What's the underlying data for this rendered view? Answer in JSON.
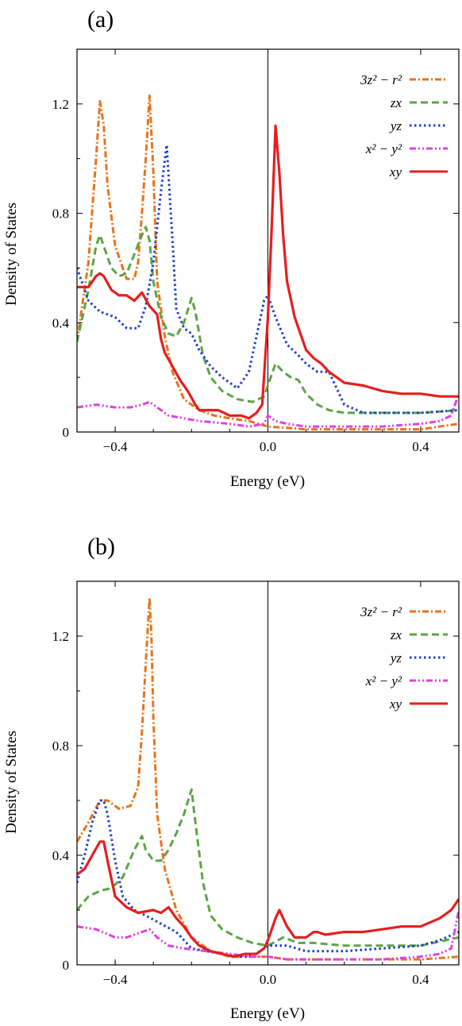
{
  "chart_data": [
    {
      "type": "line",
      "panel_label": "(a)",
      "xlabel": "Energy (eV)",
      "ylabel": "Density of States",
      "xlim": [
        -0.5,
        0.5
      ],
      "ylim": [
        0,
        1.4
      ],
      "xticks": [
        -0.4,
        0.0,
        0.4
      ],
      "xtick_labels": [
        "−0.4",
        "0.0",
        "0.4"
      ],
      "yticks": [
        0,
        0.4,
        0.8,
        1.2
      ],
      "ytick_labels": [
        "0",
        "0.4",
        "0.8",
        "1.2"
      ],
      "vline_x": 0.0,
      "legend_position": "top-right",
      "series": [
        {
          "name": "3z² − r²",
          "color": "#e8731c",
          "dash": "dashdot",
          "x": [
            -0.5,
            -0.47,
            -0.45,
            -0.44,
            -0.43,
            -0.42,
            -0.4,
            -0.37,
            -0.35,
            -0.34,
            -0.33,
            -0.32,
            -0.31,
            -0.3,
            -0.29,
            -0.27,
            -0.25,
            -0.22,
            -0.18,
            -0.14,
            -0.1,
            -0.05,
            0.0,
            0.05,
            0.1,
            0.2,
            0.3,
            0.4,
            0.5
          ],
          "y": [
            0.33,
            0.62,
            1.0,
            1.21,
            1.12,
            0.9,
            0.68,
            0.56,
            0.56,
            0.62,
            0.8,
            1.0,
            1.23,
            0.95,
            0.55,
            0.35,
            0.22,
            0.12,
            0.08,
            0.06,
            0.05,
            0.04,
            0.02,
            0.015,
            0.01,
            0.01,
            0.01,
            0.01,
            0.03
          ]
        },
        {
          "name": "zx",
          "color": "#5aa545",
          "dash": "dashed",
          "x": [
            -0.5,
            -0.47,
            -0.45,
            -0.44,
            -0.43,
            -0.41,
            -0.39,
            -0.37,
            -0.35,
            -0.33,
            -0.32,
            -0.31,
            -0.3,
            -0.28,
            -0.26,
            -0.24,
            -0.22,
            -0.2,
            -0.19,
            -0.17,
            -0.15,
            -0.12,
            -0.08,
            -0.04,
            -0.01,
            0.02,
            0.04,
            0.06,
            0.08,
            0.1,
            0.13,
            0.16,
            0.2,
            0.3,
            0.4,
            0.5
          ],
          "y": [
            0.33,
            0.52,
            0.68,
            0.72,
            0.68,
            0.6,
            0.57,
            0.58,
            0.65,
            0.72,
            0.75,
            0.7,
            0.55,
            0.42,
            0.36,
            0.35,
            0.4,
            0.49,
            0.44,
            0.28,
            0.2,
            0.15,
            0.12,
            0.11,
            0.13,
            0.25,
            0.22,
            0.2,
            0.19,
            0.14,
            0.1,
            0.08,
            0.07,
            0.07,
            0.07,
            0.08
          ]
        },
        {
          "name": "yz",
          "color": "#1b3fc7",
          "dash": "dotted",
          "x": [
            -0.5,
            -0.47,
            -0.44,
            -0.4,
            -0.37,
            -0.34,
            -0.32,
            -0.3,
            -0.28,
            -0.265,
            -0.25,
            -0.24,
            -0.22,
            -0.2,
            -0.18,
            -0.15,
            -0.12,
            -0.1,
            -0.08,
            -0.05,
            -0.03,
            -0.01,
            0.0,
            0.02,
            0.05,
            0.08,
            0.1,
            0.13,
            0.16,
            0.2,
            0.25,
            0.3,
            0.4,
            0.5
          ],
          "y": [
            0.6,
            0.48,
            0.44,
            0.42,
            0.38,
            0.38,
            0.46,
            0.62,
            0.88,
            1.05,
            0.7,
            0.45,
            0.38,
            0.36,
            0.3,
            0.24,
            0.2,
            0.18,
            0.16,
            0.22,
            0.35,
            0.48,
            0.5,
            0.42,
            0.32,
            0.28,
            0.25,
            0.22,
            0.22,
            0.1,
            0.07,
            0.07,
            0.07,
            0.08
          ]
        },
        {
          "name": "x² − y²",
          "color": "#e040e0",
          "dash": "dashdotdot",
          "x": [
            -0.5,
            -0.45,
            -0.4,
            -0.36,
            -0.33,
            -0.31,
            -0.29,
            -0.26,
            -0.22,
            -0.18,
            -0.1,
            -0.05,
            -0.01,
            0.0,
            0.02,
            0.05,
            0.1,
            0.2,
            0.3,
            0.4,
            0.45,
            0.48,
            0.5
          ],
          "y": [
            0.09,
            0.1,
            0.09,
            0.09,
            0.1,
            0.11,
            0.09,
            0.06,
            0.05,
            0.04,
            0.03,
            0.02,
            0.03,
            0.06,
            0.04,
            0.03,
            0.02,
            0.02,
            0.02,
            0.03,
            0.04,
            0.06,
            0.14
          ]
        },
        {
          "name": "xy",
          "color": "#e61e1e",
          "dash": "solid",
          "x": [
            -0.5,
            -0.47,
            -0.45,
            -0.44,
            -0.43,
            -0.41,
            -0.39,
            -0.37,
            -0.35,
            -0.33,
            -0.31,
            -0.29,
            -0.28,
            -0.27,
            -0.25,
            -0.23,
            -0.21,
            -0.19,
            -0.18,
            -0.16,
            -0.13,
            -0.1,
            -0.07,
            -0.05,
            -0.03,
            -0.015,
            0.0,
            0.01,
            0.02,
            0.03,
            0.04,
            0.05,
            0.07,
            0.08,
            0.1,
            0.12,
            0.14,
            0.16,
            0.18,
            0.2,
            0.25,
            0.3,
            0.35,
            0.4,
            0.45,
            0.5
          ],
          "y": [
            0.53,
            0.53,
            0.57,
            0.58,
            0.57,
            0.52,
            0.5,
            0.5,
            0.48,
            0.51,
            0.46,
            0.43,
            0.34,
            0.29,
            0.24,
            0.19,
            0.15,
            0.1,
            0.08,
            0.08,
            0.08,
            0.06,
            0.06,
            0.05,
            0.07,
            0.1,
            0.42,
            0.75,
            1.12,
            0.95,
            0.72,
            0.55,
            0.42,
            0.38,
            0.3,
            0.27,
            0.25,
            0.22,
            0.2,
            0.18,
            0.17,
            0.15,
            0.14,
            0.14,
            0.13,
            0.13
          ]
        }
      ]
    },
    {
      "type": "line",
      "panel_label": "(b)",
      "xlabel": "Energy (eV)",
      "ylabel": "Density of States",
      "xlim": [
        -0.5,
        0.5
      ],
      "ylim": [
        0,
        1.4
      ],
      "xticks": [
        -0.4,
        0.0,
        0.4
      ],
      "xtick_labels": [
        "−0.4",
        "0.0",
        "0.4"
      ],
      "yticks": [
        0,
        0.4,
        0.8,
        1.2
      ],
      "ytick_labels": [
        "0",
        "0.4",
        "0.8",
        "1.2"
      ],
      "vline_x": 0.0,
      "legend_position": "top-right",
      "series": [
        {
          "name": "3z² − r²",
          "color": "#e8731c",
          "dash": "dashdot",
          "x": [
            -0.5,
            -0.47,
            -0.44,
            -0.42,
            -0.39,
            -0.36,
            -0.34,
            -0.33,
            -0.32,
            -0.31,
            -0.305,
            -0.3,
            -0.29,
            -0.27,
            -0.24,
            -0.2,
            -0.15,
            -0.1,
            -0.05,
            0.0,
            0.05,
            0.1,
            0.2,
            0.3,
            0.4,
            0.5
          ],
          "y": [
            0.45,
            0.52,
            0.6,
            0.6,
            0.57,
            0.58,
            0.65,
            0.85,
            1.1,
            1.34,
            1.2,
            0.9,
            0.55,
            0.35,
            0.2,
            0.1,
            0.05,
            0.03,
            0.03,
            0.03,
            0.02,
            0.02,
            0.02,
            0.02,
            0.02,
            0.03
          ]
        },
        {
          "name": "zx",
          "color": "#5aa545",
          "dash": "dashed",
          "x": [
            -0.5,
            -0.47,
            -0.44,
            -0.41,
            -0.38,
            -0.35,
            -0.33,
            -0.32,
            -0.3,
            -0.28,
            -0.26,
            -0.24,
            -0.22,
            -0.2,
            -0.19,
            -0.17,
            -0.15,
            -0.12,
            -0.08,
            -0.04,
            0.0,
            0.04,
            0.08,
            0.12,
            0.2,
            0.3,
            0.4,
            0.5
          ],
          "y": [
            0.2,
            0.25,
            0.27,
            0.28,
            0.32,
            0.42,
            0.47,
            0.42,
            0.38,
            0.38,
            0.42,
            0.48,
            0.55,
            0.64,
            0.52,
            0.3,
            0.18,
            0.13,
            0.1,
            0.08,
            0.07,
            0.1,
            0.08,
            0.08,
            0.07,
            0.07,
            0.07,
            0.1
          ]
        },
        {
          "name": "yz",
          "color": "#1b3fc7",
          "dash": "dotted",
          "x": [
            -0.5,
            -0.48,
            -0.46,
            -0.44,
            -0.43,
            -0.42,
            -0.4,
            -0.38,
            -0.35,
            -0.32,
            -0.28,
            -0.24,
            -0.2,
            -0.16,
            -0.12,
            -0.08,
            -0.05,
            -0.02,
            0.0,
            0.05,
            0.1,
            0.2,
            0.3,
            0.4,
            0.45,
            0.5
          ],
          "y": [
            0.3,
            0.4,
            0.52,
            0.6,
            0.6,
            0.55,
            0.38,
            0.25,
            0.2,
            0.18,
            0.15,
            0.12,
            0.06,
            0.05,
            0.04,
            0.03,
            0.03,
            0.05,
            0.07,
            0.07,
            0.05,
            0.05,
            0.06,
            0.07,
            0.09,
            0.12
          ]
        },
        {
          "name": "x² − y²",
          "color": "#e040e0",
          "dash": "dashdotdot",
          "x": [
            -0.5,
            -0.45,
            -0.4,
            -0.37,
            -0.33,
            -0.31,
            -0.29,
            -0.26,
            -0.22,
            -0.16,
            -0.1,
            -0.05,
            0.0,
            0.05,
            0.1,
            0.2,
            0.3,
            0.4,
            0.45,
            0.48,
            0.5
          ],
          "y": [
            0.14,
            0.13,
            0.1,
            0.1,
            0.12,
            0.13,
            0.1,
            0.07,
            0.06,
            0.05,
            0.04,
            0.03,
            0.03,
            0.02,
            0.02,
            0.02,
            0.02,
            0.03,
            0.04,
            0.06,
            0.2
          ]
        },
        {
          "name": "xy",
          "color": "#e61e1e",
          "dash": "solid",
          "x": [
            -0.5,
            -0.48,
            -0.46,
            -0.44,
            -0.43,
            -0.42,
            -0.4,
            -0.37,
            -0.34,
            -0.3,
            -0.28,
            -0.26,
            -0.24,
            -0.22,
            -0.2,
            -0.18,
            -0.15,
            -0.12,
            -0.09,
            -0.06,
            -0.03,
            -0.01,
            0.0,
            0.02,
            0.03,
            0.05,
            0.07,
            0.1,
            0.12,
            0.13,
            0.15,
            0.2,
            0.25,
            0.3,
            0.35,
            0.4,
            0.45,
            0.48,
            0.5
          ],
          "y": [
            0.33,
            0.35,
            0.4,
            0.45,
            0.45,
            0.38,
            0.25,
            0.21,
            0.19,
            0.2,
            0.19,
            0.21,
            0.17,
            0.14,
            0.1,
            0.07,
            0.05,
            0.04,
            0.03,
            0.04,
            0.04,
            0.06,
            0.09,
            0.17,
            0.2,
            0.14,
            0.1,
            0.1,
            0.12,
            0.12,
            0.11,
            0.12,
            0.12,
            0.13,
            0.14,
            0.14,
            0.17,
            0.2,
            0.24
          ]
        }
      ]
    }
  ]
}
